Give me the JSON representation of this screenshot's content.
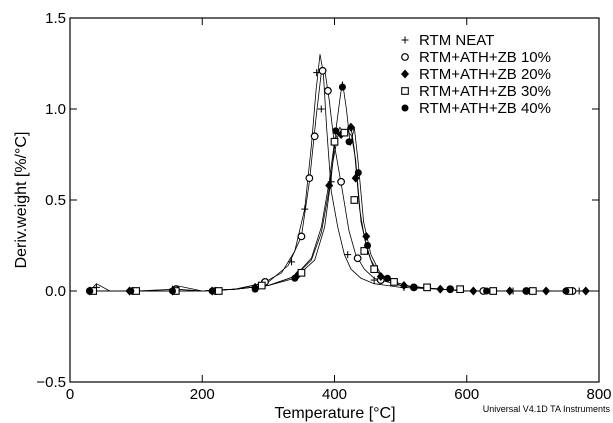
{
  "chart_data": {
    "type": "line",
    "xlabel": "Temperature [°C]",
    "ylabel": "Deriv.weight [%/°C]",
    "xlim": [
      0,
      800
    ],
    "ylim": [
      -0.5,
      1.5
    ],
    "x_ticks": [
      0,
      200,
      400,
      600,
      800
    ],
    "y_ticks": [
      -0.5,
      0.0,
      0.5,
      1.0,
      1.5
    ],
    "x_tick_labels": [
      "0",
      "200",
      "400",
      "600",
      "800"
    ],
    "y_tick_labels": [
      "−0.5",
      "0.0",
      "0.5",
      "1.0",
      "1.5"
    ],
    "legend_position": "top-right",
    "footer": "Universal V4.1D TA Instruments",
    "series": [
      {
        "name": "RTM NEAT",
        "marker": "cross",
        "x": [
          30,
          40,
          60,
          100,
          150,
          160,
          200,
          250,
          290,
          320,
          340,
          355,
          365,
          372,
          378,
          383,
          388,
          395,
          405,
          415,
          425,
          440,
          460,
          500,
          560,
          600,
          700,
          800
        ],
        "y": [
          0.0,
          0.04,
          0.0,
          0.0,
          0.0,
          0.03,
          0.0,
          0.01,
          0.04,
          0.1,
          0.22,
          0.45,
          0.8,
          1.1,
          1.3,
          1.2,
          0.9,
          0.55,
          0.35,
          0.2,
          0.12,
          0.07,
          0.04,
          0.02,
          0.01,
          0.0,
          0.0,
          0.0
        ],
        "marker_x": [
          40,
          100,
          155,
          220,
          290,
          335,
          355,
          373,
          380,
          395,
          420,
          460,
          505,
          560,
          610,
          670,
          720,
          770
        ],
        "marker_y": [
          0.02,
          0.0,
          0.01,
          0.0,
          0.04,
          0.16,
          0.45,
          1.2,
          1.0,
          0.6,
          0.2,
          0.06,
          0.02,
          0.01,
          0.0,
          0.0,
          0.0,
          0.0
        ]
      },
      {
        "name": "RTM+ATH+ZB 10%",
        "marker": "open-circle",
        "x": [
          30,
          100,
          160,
          200,
          250,
          300,
          330,
          350,
          362,
          372,
          380,
          385,
          392,
          400,
          412,
          422,
          432,
          445,
          460,
          500,
          560,
          600,
          700,
          800
        ],
        "y": [
          0.0,
          0.0,
          0.01,
          0.0,
          0.01,
          0.05,
          0.14,
          0.3,
          0.6,
          0.95,
          1.2,
          1.22,
          1.05,
          0.8,
          0.55,
          0.33,
          0.2,
          0.12,
          0.07,
          0.03,
          0.01,
          0.0,
          0.0,
          0.0
        ],
        "marker_x": [
          30,
          95,
          160,
          220,
          295,
          350,
          362,
          370,
          382,
          390,
          410,
          435,
          470,
          520,
          575,
          625,
          690,
          760
        ],
        "marker_y": [
          0.0,
          0.0,
          0.01,
          0.0,
          0.05,
          0.3,
          0.62,
          0.85,
          1.21,
          1.1,
          0.6,
          0.18,
          0.06,
          0.02,
          0.01,
          0.0,
          0.0,
          0.0
        ]
      },
      {
        "name": "RTM+ATH+ZB 20%",
        "marker": "filled-diamond",
        "x": [
          30,
          100,
          160,
          200,
          250,
          300,
          340,
          365,
          380,
          390,
          398,
          405,
          412,
          418,
          424,
          430,
          438,
          446,
          455,
          470,
          500,
          560,
          600,
          700,
          800
        ],
        "y": [
          0.0,
          0.0,
          0.0,
          0.0,
          0.01,
          0.03,
          0.08,
          0.17,
          0.32,
          0.52,
          0.72,
          0.85,
          0.87,
          0.88,
          0.92,
          0.78,
          0.45,
          0.28,
          0.17,
          0.08,
          0.03,
          0.01,
          0.0,
          0.0,
          0.0
        ],
        "marker_x": [
          30,
          90,
          155,
          215,
          280,
          345,
          392,
          410,
          425,
          432,
          448,
          470,
          505,
          560,
          610,
          665,
          720,
          780
        ],
        "marker_y": [
          0.0,
          0.0,
          0.0,
          0.0,
          0.02,
          0.09,
          0.58,
          0.86,
          0.9,
          0.62,
          0.3,
          0.08,
          0.03,
          0.01,
          0.0,
          0.0,
          0.0,
          0.0
        ]
      },
      {
        "name": "RTM+ATH+ZB 30%",
        "marker": "open-square",
        "x": [
          30,
          100,
          160,
          200,
          250,
          300,
          340,
          365,
          380,
          392,
          400,
          408,
          414,
          420,
          426,
          432,
          440,
          450,
          460,
          480,
          520,
          560,
          600,
          700,
          800
        ],
        "y": [
          0.0,
          0.0,
          0.0,
          0.0,
          0.01,
          0.03,
          0.08,
          0.18,
          0.35,
          0.6,
          0.82,
          0.9,
          0.87,
          0.88,
          0.85,
          0.72,
          0.38,
          0.22,
          0.12,
          0.06,
          0.02,
          0.01,
          0.0,
          0.0,
          0.0
        ],
        "marker_x": [
          35,
          100,
          160,
          225,
          290,
          350,
          400,
          415,
          430,
          445,
          460,
          490,
          540,
          590,
          640,
          700,
          755
        ],
        "marker_y": [
          0.0,
          0.0,
          0.0,
          0.0,
          0.03,
          0.1,
          0.82,
          0.87,
          0.5,
          0.22,
          0.12,
          0.05,
          0.02,
          0.01,
          0.0,
          0.0,
          0.0
        ]
      },
      {
        "name": "RTM+ATH+ZB 40%",
        "marker": "filled-circle",
        "x": [
          30,
          100,
          160,
          200,
          250,
          300,
          340,
          370,
          385,
          395,
          402,
          408,
          412,
          418,
          424,
          430,
          436,
          444,
          455,
          470,
          500,
          560,
          600,
          700,
          800
        ],
        "y": [
          0.0,
          0.0,
          0.0,
          0.0,
          0.01,
          0.03,
          0.07,
          0.17,
          0.35,
          0.62,
          0.88,
          1.05,
          1.15,
          1.0,
          0.8,
          0.9,
          0.7,
          0.38,
          0.2,
          0.09,
          0.03,
          0.01,
          0.0,
          0.0,
          0.0
        ],
        "marker_x": [
          30,
          92,
          155,
          215,
          280,
          340,
          402,
          412,
          422,
          436,
          450,
          480,
          520,
          575,
          630,
          690,
          750
        ],
        "marker_y": [
          0.0,
          0.0,
          0.0,
          0.0,
          0.01,
          0.07,
          0.88,
          1.12,
          0.82,
          0.65,
          0.25,
          0.07,
          0.02,
          0.01,
          0.0,
          0.0,
          0.0
        ]
      }
    ]
  }
}
